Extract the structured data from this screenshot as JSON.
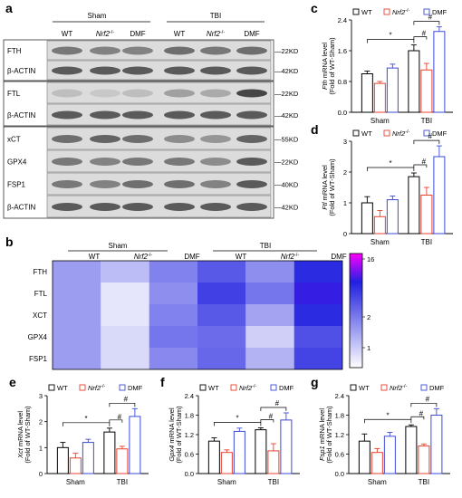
{
  "panel_letters": {
    "a": "a",
    "b": "b",
    "c": "c",
    "d": "d",
    "e": "e",
    "f": "f",
    "g": "g"
  },
  "western_blot": {
    "groups": [
      "Sham",
      "TBI"
    ],
    "lane_labels": [
      "WT",
      "Nrf2",
      "DMF",
      "WT",
      "Nrf2",
      "DMF"
    ],
    "superscript": "-/-",
    "blocks": [
      {
        "bands": [
          {
            "name": "FTH",
            "kd": "22KD",
            "intensity": [
              0.55,
              0.5,
              0.5,
              0.6,
              0.55,
              0.6
            ]
          },
          {
            "name": "β-ACTIN",
            "kd": "42KD",
            "intensity": [
              0.7,
              0.7,
              0.7,
              0.7,
              0.7,
              0.7
            ]
          }
        ]
      },
      {
        "bands": [
          {
            "name": "FTL",
            "kd": "22KD",
            "intensity": [
              0.2,
              0.15,
              0.2,
              0.35,
              0.3,
              0.8
            ]
          },
          {
            "name": "β-ACTIN",
            "kd": "42KD",
            "intensity": [
              0.7,
              0.7,
              0.7,
              0.7,
              0.7,
              0.7
            ]
          }
        ]
      },
      {
        "bands": [
          {
            "name": "xCT",
            "kd": "55KD",
            "intensity": [
              0.6,
              0.65,
              0.6,
              0.45,
              0.4,
              0.65
            ]
          },
          {
            "name": "GPX4",
            "kd": "22KD",
            "intensity": [
              0.55,
              0.5,
              0.55,
              0.55,
              0.45,
              0.7
            ]
          },
          {
            "name": "FSP1",
            "kd": "40KD",
            "intensity": [
              0.55,
              0.5,
              0.6,
              0.6,
              0.5,
              0.7
            ]
          },
          {
            "name": "β-ACTIN",
            "kd": "42KD",
            "intensity": [
              0.7,
              0.7,
              0.7,
              0.7,
              0.7,
              0.7
            ]
          }
        ]
      }
    ]
  },
  "heatmap": {
    "groups": [
      "Sham",
      "TBI"
    ],
    "columns": [
      "WT",
      "Nrf2",
      "DMF",
      "WT",
      "Nrf2",
      "DMF"
    ],
    "rows": [
      "FTH",
      "FTL",
      "XCT",
      "GPX4",
      "FSP1"
    ],
    "values": [
      [
        1.0,
        0.8,
        1.2,
        1.6,
        1.1,
        2.2
      ],
      [
        1.0,
        0.6,
        1.1,
        1.9,
        1.3,
        2.5
      ],
      [
        1.0,
        0.6,
        1.2,
        1.6,
        0.95,
        2.2
      ],
      [
        1.0,
        0.65,
        1.3,
        1.4,
        0.7,
        1.7
      ],
      [
        1.0,
        0.65,
        1.15,
        1.45,
        0.85,
        1.85
      ]
    ],
    "colorbar_ticks": [
      "16",
      "2",
      "1"
    ],
    "colors": {
      "low": "#ffffff",
      "mid": "#2020e0",
      "high": "#ff00ff"
    }
  },
  "legend": {
    "items": [
      "WT",
      "Nrf2",
      "DMF"
    ],
    "superscript": "-/-",
    "colors": [
      "#000000",
      "#e8412c",
      "#3b4bd6"
    ]
  },
  "chart_data": [
    {
      "type": "bar",
      "panel": "c",
      "gene": "Fth",
      "ylabel_rest": " mRNA level",
      "ylabel2": "(Fold of WT-Sham)",
      "categories": [
        "Sham",
        "TBI"
      ],
      "ylim": [
        0,
        2.4
      ],
      "yticks": [
        "0.0",
        "0.8",
        "1.6",
        "2.4"
      ],
      "series": [
        {
          "name": "WT",
          "values": [
            1.0,
            1.6
          ],
          "err": [
            0.07,
            0.15
          ]
        },
        {
          "name": "Nrf2-/-",
          "values": [
            0.75,
            1.1
          ],
          "err": [
            0.05,
            0.17
          ]
        },
        {
          "name": "DMF",
          "values": [
            1.15,
            2.1
          ],
          "err": [
            0.1,
            0.12
          ]
        }
      ]
    },
    {
      "type": "bar",
      "panel": "d",
      "gene": "Ftl",
      "ylabel_rest": " mRNA level",
      "ylabel2": "(Fold of WT-Sham)",
      "categories": [
        "Sham",
        "TBI"
      ],
      "ylim": [
        0,
        3
      ],
      "yticks": [
        "0",
        "1",
        "2",
        "3"
      ],
      "series": [
        {
          "name": "WT",
          "values": [
            1.0,
            1.85
          ],
          "err": [
            0.2,
            0.12
          ]
        },
        {
          "name": "Nrf2-/-",
          "values": [
            0.55,
            1.25
          ],
          "err": [
            0.2,
            0.25
          ]
        },
        {
          "name": "DMF",
          "values": [
            1.1,
            2.5
          ],
          "err": [
            0.12,
            0.35
          ]
        }
      ]
    },
    {
      "type": "bar",
      "panel": "e",
      "gene": "Xct",
      "ylabel_rest": " mRNA level",
      "ylabel2": "(Fold of WT-Sham)",
      "categories": [
        "Sham",
        "TBI"
      ],
      "ylim": [
        0,
        3
      ],
      "yticks": [
        "0",
        "1",
        "2",
        "3"
      ],
      "series": [
        {
          "name": "WT",
          "values": [
            1.0,
            1.6
          ],
          "err": [
            0.2,
            0.15
          ]
        },
        {
          "name": "Nrf2-/-",
          "values": [
            0.6,
            0.95
          ],
          "err": [
            0.18,
            0.1
          ]
        },
        {
          "name": "DMF",
          "values": [
            1.2,
            2.2
          ],
          "err": [
            0.12,
            0.3
          ]
        }
      ]
    },
    {
      "type": "bar",
      "panel": "f",
      "gene": "Gpx4",
      "ylabel_rest": " mRNA level",
      "ylabel2": "(Fold of WT-Sham)",
      "categories": [
        "Sham",
        "TBI"
      ],
      "ylim": [
        0,
        2.4
      ],
      "yticks": [
        "0.0",
        "0.6",
        "1.2",
        "1.8",
        "2.4"
      ],
      "series": [
        {
          "name": "WT",
          "values": [
            1.0,
            1.35
          ],
          "err": [
            0.1,
            0.06
          ]
        },
        {
          "name": "Nrf2-/-",
          "values": [
            0.65,
            0.7
          ],
          "err": [
            0.08,
            0.22
          ]
        },
        {
          "name": "DMF",
          "values": [
            1.3,
            1.65
          ],
          "err": [
            0.1,
            0.22
          ]
        }
      ]
    },
    {
      "type": "bar",
      "panel": "g",
      "gene": "Fsp1",
      "ylabel_rest": " mRNA level",
      "ylabel2": "(Fold of WT-Sham)",
      "categories": [
        "Sham",
        "TBI"
      ],
      "ylim": [
        0,
        2.4
      ],
      "yticks": [
        "0.0",
        "0.6",
        "1.2",
        "1.8",
        "2.4"
      ],
      "series": [
        {
          "name": "WT",
          "values": [
            1.0,
            1.45
          ],
          "err": [
            0.22,
            0.05
          ]
        },
        {
          "name": "Nrf2-/-",
          "values": [
            0.65,
            0.85
          ],
          "err": [
            0.12,
            0.06
          ]
        },
        {
          "name": "DMF",
          "values": [
            1.15,
            1.8
          ],
          "err": [
            0.12,
            0.2
          ]
        }
      ]
    }
  ],
  "significance": {
    "star": "*",
    "hash": "#"
  }
}
